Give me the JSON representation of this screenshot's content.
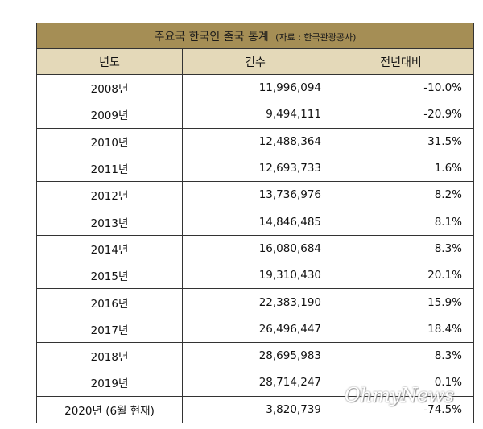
{
  "table": {
    "title": "주요국 한국인 출국 통계",
    "source": "(자료 : 한국관광공사)",
    "headers": [
      "년도",
      "건수",
      "전년대비"
    ],
    "rows": [
      {
        "year": "2008년",
        "count": "11,996,094",
        "change": "-10.0%"
      },
      {
        "year": "2009년",
        "count": "9,494,111",
        "change": "-20.9%"
      },
      {
        "year": "2010년",
        "count": "12,488,364",
        "change": "31.5%"
      },
      {
        "year": "2011년",
        "count": "12,693,733",
        "change": "1.6%"
      },
      {
        "year": "2012년",
        "count": "13,736,976",
        "change": "8.2%"
      },
      {
        "year": "2013년",
        "count": "14,846,485",
        "change": "8.1%"
      },
      {
        "year": "2014년",
        "count": "16,080,684",
        "change": "8.3%"
      },
      {
        "year": "2015년",
        "count": "19,310,430",
        "change": "20.1%"
      },
      {
        "year": "2016년",
        "count": "22,383,190",
        "change": "15.9%"
      },
      {
        "year": "2017년",
        "count": "26,496,447",
        "change": "18.4%"
      },
      {
        "year": "2018년",
        "count": "28,695,983",
        "change": "8.3%"
      },
      {
        "year": "2019년",
        "count": "28,714,247",
        "change": "0.1%"
      },
      {
        "year": "2020년 (6월 현재)",
        "count": "3,820,739",
        "change": "-74.5%"
      }
    ]
  },
  "watermark": "OhmyNews"
}
